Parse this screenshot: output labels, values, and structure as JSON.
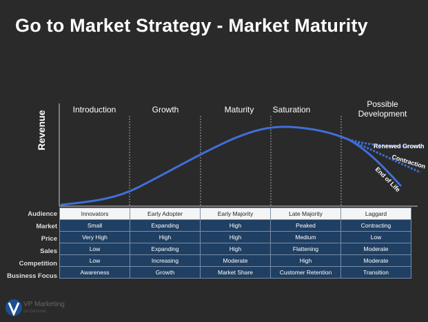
{
  "title": "Go to Market Strategy - Market Maturity",
  "y_axis_label": "Revenue",
  "stages": [
    "Introduction",
    "Growth",
    "Maturity",
    "Saturation",
    "Possible Development"
  ],
  "curve_labels": [
    "Renewed Growth",
    "Contraction",
    "End of Life"
  ],
  "rows": [
    {
      "label": "Audience",
      "cells": [
        "Innovators",
        "Early Adopter",
        "Early Majority",
        "Late Majority",
        "Laggard"
      ]
    },
    {
      "label": "Market",
      "cells": [
        "Small",
        "Expanding",
        "High",
        "Peaked",
        "Contracting"
      ]
    },
    {
      "label": "Price",
      "cells": [
        "Very High",
        "High",
        "High",
        "Medium",
        "Low"
      ]
    },
    {
      "label": "Sales",
      "cells": [
        "Low",
        "Expanding",
        "High",
        "Flattening",
        "Moderate"
      ]
    },
    {
      "label": "Competition",
      "cells": [
        "Low",
        "Increasing",
        "Moderate",
        "High",
        "Moderate"
      ]
    },
    {
      "label": "Business Focus",
      "cells": [
        "Awareness",
        "Growth",
        "Market Share",
        "Customer Retention",
        "Transition"
      ]
    }
  ],
  "logo": {
    "name": "VP Marketing",
    "sub": "On Demand"
  },
  "colors": {
    "curve": "#3f6fd8",
    "table_cell": "#1f3f63",
    "background": "#2a2a2a"
  }
}
